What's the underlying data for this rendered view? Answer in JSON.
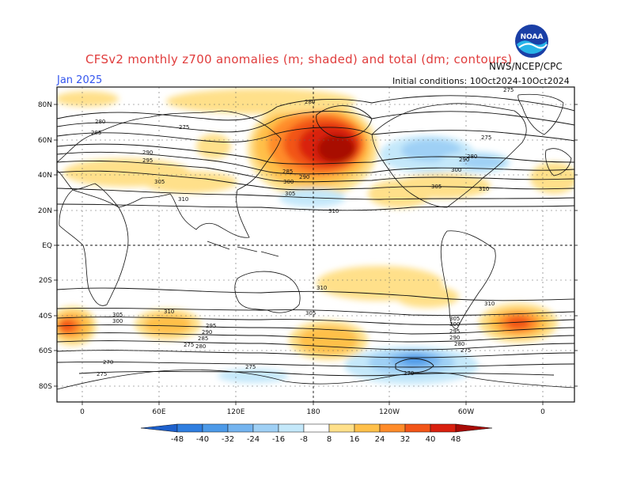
{
  "header": {
    "title": "CFSv2 monthly z700 anomalies (m; shaded) and total (dm; contours)",
    "valid_month": "Jan 2025",
    "agency": "NWS/NCEP/CPC",
    "init_conditions": "Initial conditions: 10Oct2024-10Oct2024",
    "logo_text": "NOAA"
  },
  "axes": {
    "lat_labels": [
      "80N",
      "60N",
      "40N",
      "20N",
      "EQ",
      "20S",
      "40S",
      "60S",
      "80S"
    ],
    "lon_labels": [
      "0",
      "60E",
      "120E",
      "180",
      "120W",
      "60W",
      "0"
    ]
  },
  "contour_labels": [
    "280",
    "280",
    "285",
    "285",
    "290",
    "290",
    "295",
    "300",
    "305",
    "305",
    "310",
    "310",
    "275",
    "275",
    "275",
    "300",
    "305",
    "310",
    "310",
    "310",
    "305",
    "300",
    "295",
    "290",
    "285",
    "280",
    "275",
    "270",
    "275",
    "305",
    "300",
    "295",
    "290",
    "280",
    "270",
    "275",
    "310",
    "305",
    "290",
    "280",
    "275"
  ],
  "colorbar": {
    "ticks": [
      "-48",
      "-40",
      "-32",
      "-24",
      "-16",
      "-8",
      "8",
      "16",
      "24",
      "32",
      "40",
      "48"
    ],
    "colors": [
      "#1d60cc",
      "#2f7ee0",
      "#4d9ae8",
      "#74b4ef",
      "#9fd0f5",
      "#c4e8fa",
      "#ffffff",
      "#ffe08a",
      "#ffc04a",
      "#ff8c2a",
      "#f25518",
      "#d9200f",
      "#a80b06"
    ]
  }
}
